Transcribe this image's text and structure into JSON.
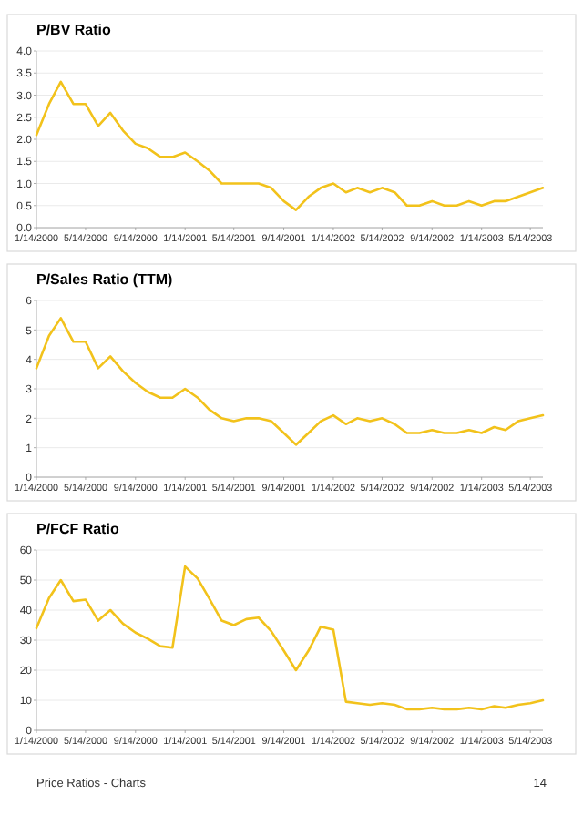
{
  "chart_data": [
    {
      "type": "line",
      "title": "P/BV Ratio",
      "x": [
        "2000-01-14",
        "2000-02-14",
        "2000-03-14",
        "2000-04-14",
        "2000-05-14",
        "2000-06-14",
        "2000-07-14",
        "2000-08-14",
        "2000-09-14",
        "2000-10-14",
        "2000-11-14",
        "2000-12-14",
        "2001-01-14",
        "2001-02-14",
        "2001-03-14",
        "2001-04-14",
        "2001-05-14",
        "2001-06-14",
        "2001-07-14",
        "2001-08-14",
        "2001-09-14",
        "2001-10-14",
        "2001-11-14",
        "2001-12-14",
        "2002-01-14",
        "2002-02-14",
        "2002-03-14",
        "2002-04-14",
        "2002-05-14",
        "2002-06-14",
        "2002-07-14",
        "2002-08-14",
        "2002-09-14",
        "2002-10-14",
        "2002-11-14",
        "2002-12-14",
        "2003-01-14",
        "2003-02-14",
        "2003-03-14",
        "2003-04-14",
        "2003-05-14",
        "2003-06-14"
      ],
      "series": [
        {
          "color": "#f2c21b",
          "values": [
            2.1,
            2.8,
            3.3,
            2.8,
            2.8,
            2.3,
            2.6,
            2.2,
            1.9,
            1.8,
            1.6,
            1.6,
            1.7,
            1.5,
            1.3,
            1.0,
            1.0,
            1.0,
            1.0,
            0.9,
            0.6,
            0.4,
            0.7,
            0.9,
            1.0,
            0.8,
            0.9,
            0.8,
            0.9,
            0.8,
            0.5,
            0.5,
            0.6,
            0.5,
            0.5,
            0.6,
            0.5,
            0.6,
            0.6,
            0.7,
            0.8,
            0.9
          ]
        }
      ],
      "xlim": [
        "2000-01-14",
        "2003-06-14"
      ],
      "xticks": [
        {
          "value": "2000-01-14",
          "label": "1/14/2000"
        },
        {
          "value": "2000-05-14",
          "label": "5/14/2000"
        },
        {
          "value": "2000-09-14",
          "label": "9/14/2000"
        },
        {
          "value": "2001-01-14",
          "label": "1/14/2001"
        },
        {
          "value": "2001-05-14",
          "label": "5/14/2001"
        },
        {
          "value": "2001-09-14",
          "label": "9/14/2001"
        },
        {
          "value": "2002-01-14",
          "label": "1/14/2002"
        },
        {
          "value": "2002-05-14",
          "label": "5/14/2002"
        },
        {
          "value": "2002-09-14",
          "label": "9/14/2002"
        },
        {
          "value": "2003-01-14",
          "label": "1/14/2003"
        },
        {
          "value": "2003-05-14",
          "label": "5/14/2003"
        }
      ],
      "ylim": [
        0,
        4
      ],
      "yticks": [
        {
          "value": 0,
          "label": "0.0"
        },
        {
          "value": 0.5,
          "label": "0.5"
        },
        {
          "value": 1,
          "label": "1.0"
        },
        {
          "value": 1.5,
          "label": "1.5"
        },
        {
          "value": 2,
          "label": "2.0"
        },
        {
          "value": 2.5,
          "label": "2.5"
        },
        {
          "value": 3,
          "label": "3.0"
        },
        {
          "value": 3.5,
          "label": "3.5"
        },
        {
          "value": 4,
          "label": "4.0"
        }
      ],
      "grid": "y"
    },
    {
      "type": "line",
      "title": "P/Sales Ratio (TTM)",
      "x": [
        "2000-01-14",
        "2000-02-14",
        "2000-03-14",
        "2000-04-14",
        "2000-05-14",
        "2000-06-14",
        "2000-07-14",
        "2000-08-14",
        "2000-09-14",
        "2000-10-14",
        "2000-11-14",
        "2000-12-14",
        "2001-01-14",
        "2001-02-14",
        "2001-03-14",
        "2001-04-14",
        "2001-05-14",
        "2001-06-14",
        "2001-07-14",
        "2001-08-14",
        "2001-09-14",
        "2001-10-14",
        "2001-11-14",
        "2001-12-14",
        "2002-01-14",
        "2002-02-14",
        "2002-03-14",
        "2002-04-14",
        "2002-05-14",
        "2002-06-14",
        "2002-07-14",
        "2002-08-14",
        "2002-09-14",
        "2002-10-14",
        "2002-11-14",
        "2002-12-14",
        "2003-01-14",
        "2003-02-14",
        "2003-03-14",
        "2003-04-14",
        "2003-05-14",
        "2003-06-14"
      ],
      "series": [
        {
          "color": "#f2c21b",
          "values": [
            3.7,
            4.8,
            5.4,
            4.6,
            4.6,
            3.7,
            4.1,
            3.6,
            3.2,
            2.9,
            2.7,
            2.7,
            3.0,
            2.7,
            2.3,
            2.0,
            1.9,
            2.0,
            2.0,
            1.9,
            1.5,
            1.1,
            1.5,
            1.9,
            2.1,
            1.8,
            2.0,
            1.9,
            2.0,
            1.8,
            1.5,
            1.5,
            1.6,
            1.5,
            1.5,
            1.6,
            1.5,
            1.7,
            1.6,
            1.9,
            2.0,
            2.1
          ]
        }
      ],
      "xlim": [
        "2000-01-14",
        "2003-06-14"
      ],
      "xticks": [
        {
          "value": "2000-01-14",
          "label": "1/14/2000"
        },
        {
          "value": "2000-05-14",
          "label": "5/14/2000"
        },
        {
          "value": "2000-09-14",
          "label": "9/14/2000"
        },
        {
          "value": "2001-01-14",
          "label": "1/14/2001"
        },
        {
          "value": "2001-05-14",
          "label": "5/14/2001"
        },
        {
          "value": "2001-09-14",
          "label": "9/14/2001"
        },
        {
          "value": "2002-01-14",
          "label": "1/14/2002"
        },
        {
          "value": "2002-05-14",
          "label": "5/14/2002"
        },
        {
          "value": "2002-09-14",
          "label": "9/14/2002"
        },
        {
          "value": "2003-01-14",
          "label": "1/14/2003"
        },
        {
          "value": "2003-05-14",
          "label": "5/14/2003"
        }
      ],
      "ylim": [
        0,
        6
      ],
      "yticks": [
        0,
        1,
        2,
        3,
        4,
        5,
        6
      ],
      "grid": "y"
    },
    {
      "type": "line",
      "title": "P/FCF Ratio",
      "x": [
        "2000-01-14",
        "2000-02-14",
        "2000-03-14",
        "2000-04-14",
        "2000-05-14",
        "2000-06-14",
        "2000-07-14",
        "2000-08-14",
        "2000-09-14",
        "2000-10-14",
        "2000-11-14",
        "2000-12-14",
        "2001-01-14",
        "2001-02-14",
        "2001-03-14",
        "2001-04-14",
        "2001-05-14",
        "2001-06-14",
        "2001-07-14",
        "2001-08-14",
        "2001-09-14",
        "2001-10-14",
        "2001-11-14",
        "2001-12-14",
        "2002-01-14",
        "2002-02-14",
        "2002-03-14",
        "2002-04-14",
        "2002-05-14",
        "2002-06-14",
        "2002-07-14",
        "2002-08-14",
        "2002-09-14",
        "2002-10-14",
        "2002-11-14",
        "2002-12-14",
        "2003-01-14",
        "2003-02-14",
        "2003-03-14",
        "2003-04-14",
        "2003-05-14",
        "2003-06-14"
      ],
      "series": [
        {
          "color": "#f2c21b",
          "values": [
            34,
            44,
            50,
            43,
            43.5,
            36.5,
            40,
            35.5,
            32.5,
            30.5,
            28,
            27.5,
            54.5,
            50.5,
            44,
            36.5,
            35,
            37,
            37.5,
            33,
            26.5,
            20,
            26.5,
            34.5,
            33.5,
            9.5,
            9,
            8.5,
            9,
            8.5,
            7,
            7,
            7.5,
            7,
            7,
            7.5,
            7,
            8,
            7.5,
            8.5,
            9,
            10
          ]
        }
      ],
      "xlim": [
        "2000-01-14",
        "2003-06-14"
      ],
      "xticks": [
        {
          "value": "2000-01-14",
          "label": "1/14/2000"
        },
        {
          "value": "2000-05-14",
          "label": "5/14/2000"
        },
        {
          "value": "2000-09-14",
          "label": "9/14/2000"
        },
        {
          "value": "2001-01-14",
          "label": "1/14/2001"
        },
        {
          "value": "2001-05-14",
          "label": "5/14/2001"
        },
        {
          "value": "2001-09-14",
          "label": "9/14/2001"
        },
        {
          "value": "2002-01-14",
          "label": "1/14/2002"
        },
        {
          "value": "2002-05-14",
          "label": "5/14/2002"
        },
        {
          "value": "2002-09-14",
          "label": "9/14/2002"
        },
        {
          "value": "2003-01-14",
          "label": "1/14/2003"
        },
        {
          "value": "2003-05-14",
          "label": "5/14/2003"
        }
      ],
      "ylim": [
        0,
        60
      ],
      "yticks": [
        0,
        10,
        20,
        30,
        40,
        50,
        60
      ],
      "grid": "y",
      "annotations": [
        "Price Ratios - Charts",
        "14"
      ]
    }
  ]
}
